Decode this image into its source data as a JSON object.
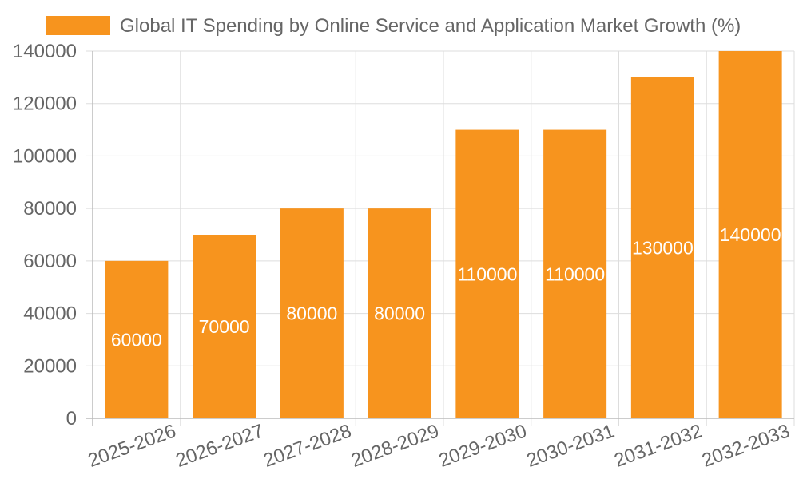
{
  "chart_data": {
    "type": "bar",
    "title": "",
    "xlabel": "",
    "ylabel": "",
    "categories": [
      "2025-2026",
      "2026-2027",
      "2027-2028",
      "2028-2029",
      "2029-2030",
      "2030-2031",
      "2031-2032",
      "2032-2033"
    ],
    "series": [
      {
        "name": "Global IT Spending by Online Service and Application Market Growth (%)",
        "values": [
          60000,
          70000,
          80000,
          80000,
          110000,
          110000,
          130000,
          140000
        ],
        "color": "#F7941E"
      }
    ],
    "ylim": [
      0,
      140000
    ],
    "yticks": [
      0,
      20000,
      40000,
      60000,
      80000,
      100000,
      120000,
      140000
    ],
    "grid": true,
    "legend_position": "top",
    "data_labels": true
  }
}
